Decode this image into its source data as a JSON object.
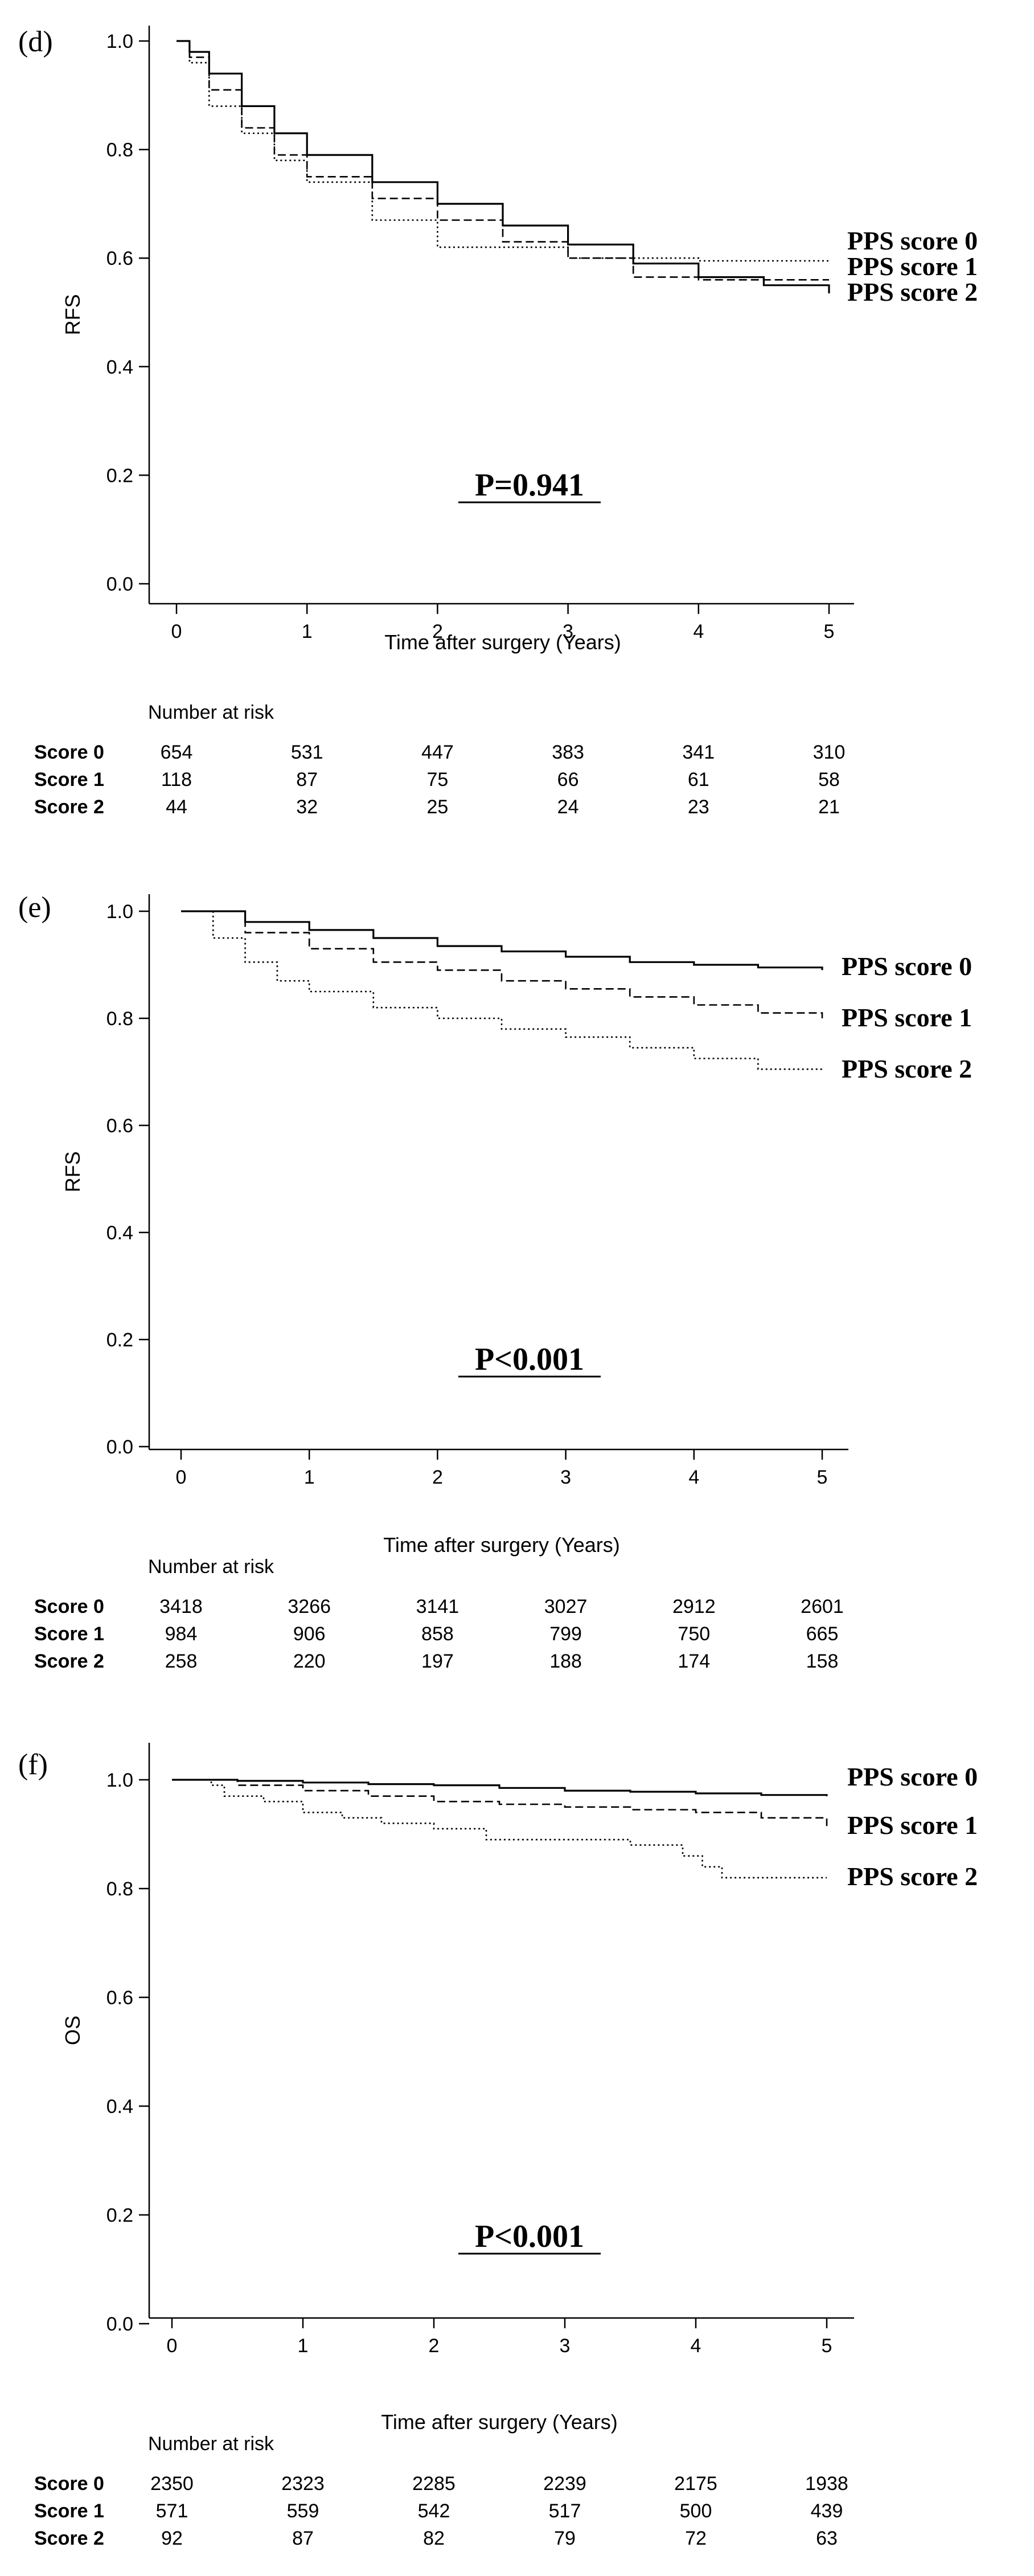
{
  "chart_data": [
    {
      "type": "line",
      "panel": "(d)",
      "ylabel": "RFS",
      "xlabel": "Time after surgery (Years)",
      "xlim": [
        0,
        5
      ],
      "ylim": [
        0,
        1
      ],
      "xticks": [
        "0",
        "1",
        "2",
        "3",
        "4",
        "5"
      ],
      "yticks": [
        "0.0",
        "0.2",
        "0.4",
        "0.6",
        "0.8",
        "1.0"
      ],
      "p_value": "P=0.941",
      "series": [
        {
          "name": "PPS score 0",
          "style": "solid",
          "x": [
            0,
            0.1,
            0.25,
            0.5,
            0.75,
            1.0,
            1.5,
            2.0,
            2.5,
            3.0,
            3.5,
            4.0,
            4.5,
            5.0
          ],
          "y": [
            1.0,
            0.98,
            0.94,
            0.88,
            0.83,
            0.79,
            0.74,
            0.7,
            0.66,
            0.625,
            0.59,
            0.565,
            0.55,
            0.535
          ]
        },
        {
          "name": "PPS score 1",
          "style": "dashed",
          "x": [
            0,
            0.1,
            0.25,
            0.5,
            0.75,
            1.0,
            1.5,
            2.0,
            2.5,
            3.0,
            3.5,
            4.0,
            4.5,
            5.0
          ],
          "y": [
            1.0,
            0.97,
            0.91,
            0.84,
            0.79,
            0.75,
            0.71,
            0.67,
            0.63,
            0.6,
            0.565,
            0.56,
            0.56,
            0.56
          ]
        },
        {
          "name": "PPS score 2",
          "style": "dotted",
          "x": [
            0,
            0.1,
            0.25,
            0.5,
            0.75,
            1.0,
            1.5,
            1.9,
            2.0,
            2.5,
            3.0,
            3.5,
            4.0,
            4.5,
            5.0
          ],
          "y": [
            1.0,
            0.96,
            0.88,
            0.83,
            0.78,
            0.74,
            0.67,
            0.67,
            0.62,
            0.62,
            0.6,
            0.6,
            0.595,
            0.595,
            0.595
          ]
        }
      ],
      "risk_table": {
        "title": "Number at risk",
        "rows": [
          {
            "label": "Score 0",
            "values": [
              "654",
              "531",
              "447",
              "383",
              "341",
              "310"
            ]
          },
          {
            "label": "Score 1",
            "values": [
              "118",
              "87",
              "75",
              "66",
              "61",
              "58"
            ]
          },
          {
            "label": "Score 2",
            "values": [
              "44",
              "32",
              "25",
              "24",
              "23",
              "21"
            ]
          }
        ]
      }
    },
    {
      "type": "line",
      "panel": "(e)",
      "ylabel": "RFS",
      "xlabel": "Time after surgery (Years)",
      "xlim": [
        0,
        5
      ],
      "ylim": [
        0,
        1
      ],
      "xticks": [
        "0",
        "1",
        "2",
        "3",
        "4",
        "5"
      ],
      "yticks": [
        "0.0",
        "0.2",
        "0.4",
        "0.6",
        "0.8",
        "1.0"
      ],
      "p_value": "P<0.001",
      "series": [
        {
          "name": "PPS score 0",
          "style": "solid",
          "x": [
            0,
            0.5,
            1.0,
            1.5,
            2.0,
            2.5,
            3.0,
            3.5,
            4.0,
            4.5,
            5.0
          ],
          "y": [
            1.0,
            0.98,
            0.965,
            0.95,
            0.935,
            0.925,
            0.915,
            0.905,
            0.9,
            0.895,
            0.89
          ]
        },
        {
          "name": "PPS score 1",
          "style": "dashed",
          "x": [
            0,
            0.5,
            1.0,
            1.5,
            2.0,
            2.5,
            3.0,
            3.5,
            4.0,
            4.5,
            5.0
          ],
          "y": [
            1.0,
            0.96,
            0.93,
            0.905,
            0.89,
            0.87,
            0.855,
            0.84,
            0.825,
            0.81,
            0.8
          ]
        },
        {
          "name": "PPS score 2",
          "style": "dotted",
          "x": [
            0,
            0.25,
            0.5,
            0.75,
            1.0,
            1.5,
            2.0,
            2.5,
            3.0,
            3.5,
            4.0,
            4.5,
            5.0
          ],
          "y": [
            1.0,
            0.95,
            0.905,
            0.87,
            0.85,
            0.82,
            0.8,
            0.78,
            0.765,
            0.745,
            0.725,
            0.705,
            0.7
          ]
        }
      ],
      "risk_table": {
        "title": "Number at risk",
        "rows": [
          {
            "label": "Score 0",
            "values": [
              "3418",
              "3266",
              "3141",
              "3027",
              "2912",
              "2601"
            ]
          },
          {
            "label": "Score 1",
            "values": [
              "984",
              "906",
              "858",
              "799",
              "750",
              "665"
            ]
          },
          {
            "label": "Score 2",
            "values": [
              "258",
              "220",
              "197",
              "188",
              "174",
              "158"
            ]
          }
        ]
      }
    },
    {
      "type": "line",
      "panel": "(f)",
      "ylabel": "OS",
      "xlabel": "Time after surgery (Years)",
      "xlim": [
        0,
        5
      ],
      "ylim": [
        0,
        1
      ],
      "xticks": [
        "0",
        "1",
        "2",
        "3",
        "4",
        "5"
      ],
      "yticks": [
        "0.0",
        "0.2",
        "0.4",
        "0.6",
        "0.8",
        "1.0"
      ],
      "p_value": "P<0.001",
      "series": [
        {
          "name": "PPS score 0",
          "style": "solid",
          "x": [
            0,
            0.5,
            1.0,
            1.5,
            2.0,
            2.5,
            3.0,
            3.5,
            4.0,
            4.5,
            5.0
          ],
          "y": [
            1.0,
            0.998,
            0.995,
            0.992,
            0.99,
            0.985,
            0.98,
            0.978,
            0.975,
            0.972,
            0.97
          ]
        },
        {
          "name": "PPS score 1",
          "style": "dashed",
          "x": [
            0,
            0.5,
            1.0,
            1.5,
            2.0,
            2.5,
            3.0,
            3.5,
            4.0,
            4.5,
            5.0
          ],
          "y": [
            1.0,
            0.99,
            0.98,
            0.97,
            0.96,
            0.955,
            0.95,
            0.945,
            0.94,
            0.93,
            0.915
          ]
        },
        {
          "name": "PPS score 2",
          "style": "dotted",
          "x": [
            0,
            0.3,
            0.4,
            0.7,
            1.0,
            1.3,
            1.6,
            2.0,
            2.4,
            3.0,
            3.5,
            3.9,
            4.05,
            4.2,
            5.0
          ],
          "y": [
            1.0,
            0.99,
            0.97,
            0.96,
            0.94,
            0.93,
            0.92,
            0.91,
            0.89,
            0.89,
            0.88,
            0.86,
            0.84,
            0.82,
            0.82
          ]
        }
      ],
      "risk_table": {
        "title": "Number at risk",
        "rows": [
          {
            "label": "Score 0",
            "values": [
              "2350",
              "2323",
              "2285",
              "2239",
              "2175",
              "1938"
            ]
          },
          {
            "label": "Score 1",
            "values": [
              "571",
              "559",
              "542",
              "517",
              "500",
              "439"
            ]
          },
          {
            "label": "Score 2",
            "values": [
              "92",
              "87",
              "82",
              "79",
              "72",
              "63"
            ]
          }
        ]
      }
    }
  ]
}
